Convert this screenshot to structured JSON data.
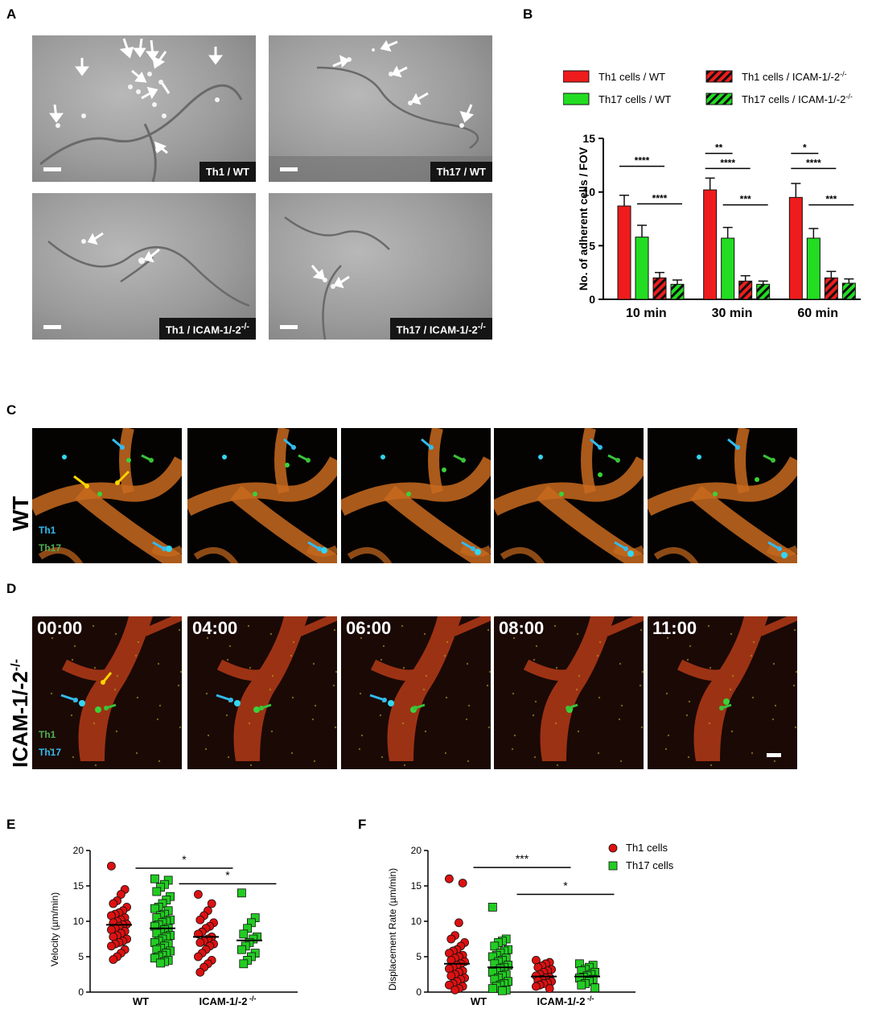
{
  "panel_labels": {
    "a": "A",
    "b": "B",
    "c": "C",
    "d": "D",
    "e": "E",
    "f": "F"
  },
  "panel_a": {
    "tiles": [
      {
        "label": "Th1 / WT",
        "arrows": 13
      },
      {
        "label": "Th17 / WT",
        "arrows": 6
      },
      {
        "label": "Th1 / ICAM-1/-2",
        "sup": "-/-",
        "arrows": 2
      },
      {
        "label": "Th17 / ICAM-1/-2",
        "sup": "-/-",
        "arrows": 2
      }
    ]
  },
  "panel_c": {
    "row_label": "WT",
    "cell_labels": [
      {
        "text": "Th1",
        "color": "#33bbee"
      },
      {
        "text": "Th17",
        "color": "#4caf50"
      }
    ],
    "colors": {
      "vessel": "#c86a1e",
      "cell_blue": "#33d6f0",
      "cell_green": "#3ad23a",
      "arrow_yellow": "#ffd400"
    }
  },
  "panel_d": {
    "row_label": "ICAM-1/-2",
    "row_label_sup": "-/-",
    "timestamps": [
      "00:00",
      "04:00",
      "06:00",
      "08:00",
      "11:00"
    ],
    "cell_labels": [
      {
        "text": "Th1",
        "color": "#4caf50"
      },
      {
        "text": "Th17",
        "color": "#33bbee"
      }
    ],
    "colors": {
      "vessel": "#9c3214"
    }
  },
  "chart_data": [
    {
      "panel": "B",
      "type": "bar",
      "categories": [
        "10 min",
        "30 min",
        "60 min"
      ],
      "ylabel": "No. of adherent cells / FOV",
      "ylim": [
        0,
        15
      ],
      "yticks": [
        0,
        5,
        10,
        15
      ],
      "legend": [
        "Th1 cells / WT",
        "Th17 cells / WT",
        "Th1 cells / ICAM-1/-2",
        "Th17 cells / ICAM-1/-2"
      ],
      "legend_sup": "-/-",
      "series": [
        {
          "name": "Th1 cells / WT",
          "color": "#ee1c1c",
          "hatch": false,
          "values": [
            8.7,
            10.2,
            9.5
          ],
          "errors": [
            1.0,
            1.1,
            1.3
          ]
        },
        {
          "name": "Th17 cells / WT",
          "color": "#22dd22",
          "hatch": false,
          "values": [
            5.8,
            5.7,
            5.7
          ],
          "errors": [
            1.1,
            1.0,
            0.9
          ]
        },
        {
          "name": "Th1 cells / ICAM-1/-2",
          "color": "#ee1c1c",
          "hatch": true,
          "values": [
            2.0,
            1.7,
            2.0
          ],
          "errors": [
            0.5,
            0.5,
            0.6
          ]
        },
        {
          "name": "Th17 cells / ICAM-1/-2",
          "color": "#22dd22",
          "hatch": true,
          "values": [
            1.4,
            1.4,
            1.5
          ],
          "errors": [
            0.4,
            0.3,
            0.4
          ]
        }
      ],
      "significance": [
        {
          "group": 0,
          "from": 0,
          "to": 2,
          "y": 12.4,
          "text": "****"
        },
        {
          "group": 0,
          "from": 1,
          "to": 3,
          "y": 8.9,
          "text": "****"
        },
        {
          "group": 1,
          "from": 0,
          "to": 1,
          "y": 13.6,
          "text": "**"
        },
        {
          "group": 1,
          "from": 0,
          "to": 2,
          "y": 12.2,
          "text": "****"
        },
        {
          "group": 1,
          "from": 1,
          "to": 3,
          "y": 8.8,
          "text": "***"
        },
        {
          "group": 2,
          "from": 0,
          "to": 1,
          "y": 13.6,
          "text": "*"
        },
        {
          "group": 2,
          "from": 0,
          "to": 2,
          "y": 12.2,
          "text": "****"
        },
        {
          "group": 2,
          "from": 1,
          "to": 3,
          "y": 8.8,
          "text": "***"
        }
      ]
    },
    {
      "panel": "E",
      "type": "scatter",
      "ylabel": "Velocity (µm/min)",
      "ylim": [
        0,
        20
      ],
      "yticks": [
        0,
        5,
        10,
        15,
        20
      ],
      "group_labels": [
        "WT",
        "ICAM-1/-2"
      ],
      "group_label_sup": "-/-",
      "series": [
        {
          "name": "Th1 cells",
          "marker": "circle",
          "color": "#dd1111",
          "group": 0,
          "mean": 9.5,
          "values": [
            17.8,
            14.5,
            13.8,
            12.9,
            12.5,
            12.0,
            11.5,
            11.2,
            11.0,
            10.8,
            10.5,
            10.2,
            10.0,
            9.8,
            9.6,
            9.5,
            9.3,
            9.0,
            8.8,
            8.6,
            8.3,
            8.0,
            7.8,
            7.5,
            7.2,
            7.0,
            6.8,
            6.5,
            6.0,
            5.5,
            5.0,
            4.6
          ]
        },
        {
          "name": "Th17 cells",
          "marker": "square",
          "color": "#22cc22",
          "group": 0,
          "mean": 9.0,
          "values": [
            16.0,
            15.8,
            15.2,
            14.8,
            14.2,
            13.5,
            13.0,
            12.5,
            12.0,
            11.8,
            11.5,
            11.0,
            10.8,
            10.5,
            10.2,
            10.0,
            9.8,
            9.5,
            9.3,
            9.0,
            8.8,
            8.5,
            8.3,
            8.0,
            7.8,
            7.5,
            7.2,
            7.0,
            6.8,
            6.5,
            6.2,
            6.0,
            5.8,
            5.5,
            5.2,
            5.0,
            4.8,
            4.5,
            4.3,
            4.1
          ]
        },
        {
          "name": "Th1 cells",
          "marker": "circle",
          "color": "#dd1111",
          "group": 1,
          "mean": 7.8,
          "values": [
            13.8,
            12.5,
            11.5,
            10.8,
            10.2,
            9.8,
            9.3,
            9.0,
            8.5,
            8.2,
            7.8,
            7.5,
            7.2,
            7.0,
            6.8,
            6.5,
            6.0,
            5.5,
            5.0,
            4.5,
            4.0,
            3.5,
            2.8
          ]
        },
        {
          "name": "Th17 cells",
          "marker": "square",
          "color": "#22cc22",
          "group": 1,
          "mean": 7.3,
          "values": [
            14.0,
            10.5,
            9.8,
            9.0,
            8.2,
            7.8,
            7.5,
            7.0,
            6.5,
            6.0,
            5.5,
            5.0,
            4.5,
            4.0
          ]
        }
      ],
      "significance": [
        {
          "x1": 0.38,
          "x2": 2.62,
          "y": 17.5,
          "text": "*"
        },
        {
          "x1": 1.38,
          "x2": 3.62,
          "y": 15.3,
          "text": "*"
        }
      ]
    },
    {
      "panel": "F",
      "type": "scatter",
      "ylabel": "Displacement Rate (µm/min)",
      "ylim": [
        0,
        20
      ],
      "yticks": [
        0,
        5,
        10,
        15,
        20
      ],
      "group_labels": [
        "WT",
        "ICAM-1/-2"
      ],
      "group_label_sup": "-/-",
      "legend": [
        "Th1 cells",
        "Th17 cells"
      ],
      "series": [
        {
          "name": "Th1 cells",
          "marker": "circle",
          "color": "#dd1111",
          "group": 0,
          "mean": 4.0,
          "values": [
            16.0,
            15.4,
            9.8,
            8.0,
            7.5,
            7.0,
            6.5,
            6.0,
            5.8,
            5.5,
            5.2,
            5.0,
            4.8,
            4.5,
            4.3,
            4.0,
            3.8,
            3.5,
            3.3,
            3.0,
            2.8,
            2.5,
            2.3,
            2.0,
            1.8,
            1.5,
            1.2,
            1.0,
            0.8,
            0.5,
            0.3
          ]
        },
        {
          "name": "Th17 cells",
          "marker": "square",
          "color": "#22cc22",
          "group": 0,
          "mean": 3.5,
          "values": [
            12.0,
            7.5,
            7.2,
            7.0,
            6.5,
            6.0,
            5.8,
            5.5,
            5.2,
            5.0,
            4.8,
            4.5,
            4.3,
            4.0,
            3.8,
            3.5,
            3.3,
            3.0,
            2.8,
            2.5,
            2.3,
            2.0,
            1.8,
            1.5,
            1.2,
            1.0,
            0.8,
            0.5,
            0.3,
            0.2
          ]
        },
        {
          "name": "Th1 cells",
          "marker": "circle",
          "color": "#dd1111",
          "group": 1,
          "mean": 2.2,
          "values": [
            4.5,
            4.2,
            4.0,
            3.7,
            3.5,
            3.2,
            3.0,
            2.8,
            2.5,
            2.3,
            2.1,
            2.0,
            1.8,
            1.6,
            1.5,
            1.3,
            1.2,
            1.0,
            0.8,
            0.5
          ]
        },
        {
          "name": "Th17 cells",
          "marker": "square",
          "color": "#22cc22",
          "group": 1,
          "mean": 2.2,
          "values": [
            4.0,
            3.8,
            3.5,
            3.2,
            3.0,
            2.8,
            2.5,
            2.3,
            2.1,
            2.0,
            1.8,
            1.5,
            1.2,
            1.0,
            0.6
          ]
        }
      ],
      "significance": [
        {
          "x1": 0.38,
          "x2": 2.62,
          "y": 17.6,
          "text": "***"
        },
        {
          "x1": 1.38,
          "x2": 3.62,
          "y": 13.8,
          "text": "*"
        }
      ]
    }
  ]
}
